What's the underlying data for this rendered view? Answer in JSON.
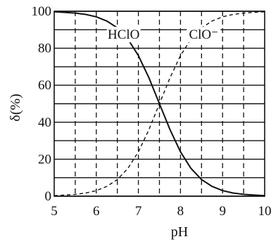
{
  "chart_data": {
    "type": "line",
    "xlabel": "pH",
    "ylabel": "δ(%)",
    "xlim": [
      5,
      10
    ],
    "ylim": [
      0,
      100
    ],
    "x_ticks": [
      "5",
      "6",
      "7",
      "8",
      "9",
      "10"
    ],
    "y_ticks": [
      "0",
      "20",
      "40",
      "60",
      "80",
      "100"
    ],
    "grid": true,
    "series": [
      {
        "name": "HClO",
        "style": "solid",
        "x": [
          5.0,
          5.25,
          5.5,
          5.75,
          6.0,
          6.25,
          6.5,
          6.75,
          7.0,
          7.25,
          7.5,
          7.75,
          8.0,
          8.25,
          8.5,
          8.75,
          9.0,
          9.25,
          9.5,
          9.75,
          10.0
        ],
        "values": [
          99.7,
          99.4,
          99.0,
          98.3,
          97.0,
          94.7,
          91.0,
          85.0,
          76.0,
          64.0,
          50.0,
          36.0,
          24.0,
          15.0,
          9.0,
          5.3,
          3.0,
          1.7,
          1.0,
          0.6,
          0.3
        ]
      },
      {
        "name": "ClO⁻",
        "style": "dashed",
        "x": [
          5.0,
          5.25,
          5.5,
          5.75,
          6.0,
          6.25,
          6.5,
          6.75,
          7.0,
          7.25,
          7.5,
          7.75,
          8.0,
          8.25,
          8.5,
          8.75,
          9.0,
          9.25,
          9.5,
          9.75,
          10.0
        ],
        "values": [
          0.3,
          0.6,
          1.0,
          1.7,
          3.0,
          5.3,
          9.0,
          15.0,
          24.0,
          36.0,
          50.0,
          64.0,
          76.0,
          85.0,
          91.0,
          94.7,
          97.0,
          98.3,
          99.0,
          99.4,
          99.7
        ]
      }
    ],
    "annotations": [
      {
        "text": "HClO",
        "x": 6.65,
        "y": 87
      },
      {
        "text": "ClO⁻",
        "x": 8.55,
        "y": 87
      }
    ]
  }
}
